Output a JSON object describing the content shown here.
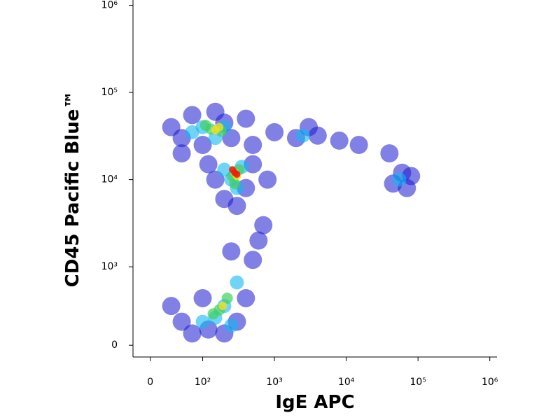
{
  "chart_data": {
    "type": "scatter",
    "x_label": "IgE APC",
    "y_label": "CD45 Pacific Blue™",
    "xscale": "biexponential",
    "yscale": "biexponential",
    "xlim": [
      -33,
      1260000
    ],
    "ylim": [
      -150,
      1150000
    ],
    "xticks": [
      0,
      {
        "value": 100,
        "label": "10²"
      },
      {
        "value": 1000,
        "label": "10³"
      },
      {
        "value": 10000,
        "label": "10⁴"
      },
      {
        "value": 100000,
        "label": "10⁵"
      },
      {
        "value": 1000000,
        "label": "10⁶"
      }
    ],
    "yticks": [
      0,
      {
        "value": 1000,
        "label": "10³"
      },
      {
        "value": 10000,
        "label": "10⁴"
      },
      {
        "value": 100000,
        "label": "10⁵"
      },
      {
        "value": 1000000,
        "label": "10⁶"
      }
    ],
    "series": [
      {
        "color": "#1a1ad0",
        "x": [
          40,
          60,
          80,
          100,
          150,
          200,
          250,
          400,
          500,
          60,
          150,
          200,
          300,
          400,
          500,
          120,
          800,
          60,
          80,
          120,
          200,
          300,
          400,
          500,
          600,
          250,
          100,
          700,
          40,
          1000,
          2000,
          4000,
          8000,
          15000,
          3000,
          45000,
          60000,
          70000,
          40000,
          80000
        ],
        "y": [
          40000,
          30000,
          55000,
          25000,
          60000,
          45000,
          30000,
          50000,
          25000,
          20000,
          10000,
          6000,
          5000,
          8000,
          15000,
          15000,
          10000,
          300,
          150,
          200,
          150,
          300,
          600,
          1200,
          2000,
          1500,
          600,
          3000,
          500,
          35000,
          30000,
          32000,
          28000,
          25000,
          40000,
          9000,
          12000,
          8000,
          20000,
          11000
        ]
      },
      {
        "color": "#10b8f0",
        "x": [
          100,
          150,
          200,
          80,
          250,
          350,
          200,
          300,
          150,
          200,
          300,
          100,
          250,
          2500,
          55000
        ],
        "y": [
          40000,
          30000,
          40000,
          35000,
          10000,
          14000,
          13000,
          8000,
          350,
          500,
          800,
          300,
          250,
          32000,
          10000
        ]
      },
      {
        "color": "#40d060",
        "x": [
          130,
          180,
          110,
          260,
          320,
          280,
          170,
          220,
          140
        ],
        "y": [
          38000,
          36000,
          42000,
          11000,
          13000,
          9000,
          450,
          600,
          400
        ]
      },
      {
        "color": "#f0e020",
        "x": [
          150,
          170,
          280,
          300,
          190
        ],
        "y": [
          37000,
          40000,
          12000,
          11000,
          500
        ]
      },
      {
        "color": "#e82010",
        "x": [
          280,
          260,
          300
        ],
        "y": [
          12000,
          13000,
          11500
        ]
      }
    ]
  }
}
